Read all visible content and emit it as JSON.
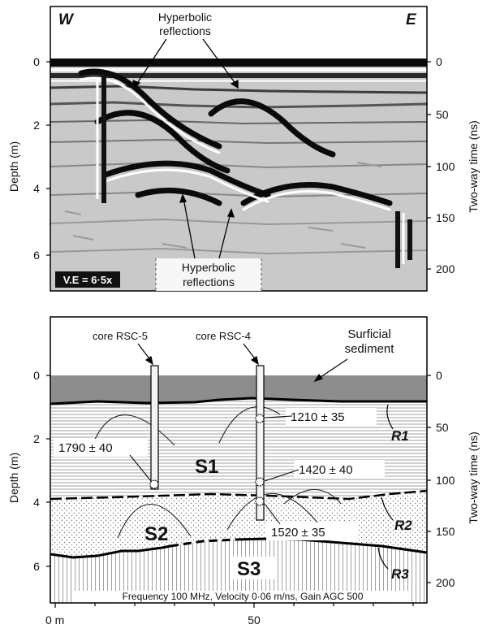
{
  "top_panel": {
    "west_label": "W",
    "east_label": "E",
    "top_annotation": [
      "Hyperbolic",
      "reflections"
    ],
    "bottom_annotation": [
      "Hyperbolic",
      "reflections"
    ],
    "vertical_exaggeration": "V.E = 6·5x",
    "left_axis": {
      "title": "Depth (m)",
      "ticks": [
        "0",
        "2",
        "4",
        "6"
      ]
    },
    "right_axis": {
      "title": "Two-way time (ns)",
      "ticks": [
        "0",
        "50",
        "100",
        "150",
        "200"
      ]
    }
  },
  "bottom_panel": {
    "cores": [
      "core RSC-5",
      "core RSC-4"
    ],
    "surficial_label": [
      "Surficial",
      "sediment"
    ],
    "units": [
      "S1",
      "S2",
      "S3"
    ],
    "reflectors": [
      "R1",
      "R2",
      "R3"
    ],
    "ages": [
      "1210 ± 35",
      "1790 ± 40",
      "1420 ± 40",
      "1520 ± 35"
    ],
    "footnote": "Frequency 100 MHz, Velocity 0·06 m/ns, Gain AGC 500",
    "left_axis": {
      "title": "Depth (m)",
      "ticks": [
        "0",
        "2",
        "4",
        "6"
      ]
    },
    "right_axis": {
      "title": "Two-way time (ns)",
      "ticks": [
        "0",
        "50",
        "100",
        "150",
        "200"
      ]
    },
    "x_axis": {
      "ticks": [
        "0 m",
        "50"
      ]
    }
  }
}
